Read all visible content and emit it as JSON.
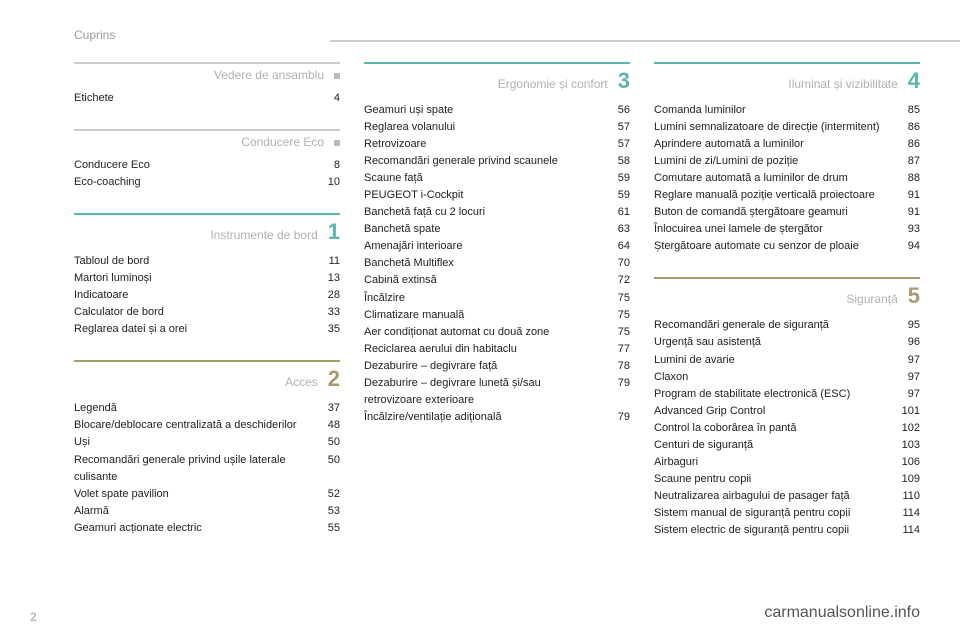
{
  "header": {
    "title": "Cuprins"
  },
  "page_number": "2",
  "watermark": "carmanualsonline.info",
  "colors": {
    "muted": "#b0b0b0",
    "teal": "#5bb5b0",
    "olive": "#a89a6b"
  },
  "columns": [
    {
      "sections": [
        {
          "title": "Vedere de ansamblu",
          "title_color": "#b0b0b0",
          "rule_color": "#cccccc",
          "marker": {
            "type": "dot"
          },
          "entries": [
            {
              "label": "Etichete",
              "page": "4"
            }
          ]
        },
        {
          "title": "Conducere Eco",
          "title_color": "#b0b0b0",
          "rule_color": "#cccccc",
          "marker": {
            "type": "dot"
          },
          "entries": [
            {
              "label": "Conducere Eco",
              "page": "8"
            },
            {
              "label": "Eco-coaching",
              "page": "10"
            }
          ]
        },
        {
          "title": "Instrumente de bord",
          "title_color": "#b0b0b0",
          "rule_color": "#5bb5b0",
          "marker": {
            "type": "number",
            "value": "1",
            "color": "#5bb5b0"
          },
          "entries": [
            {
              "label": "Tabloul de bord",
              "page": "11"
            },
            {
              "label": "Martori luminoși",
              "page": "13"
            },
            {
              "label": "Indicatoare",
              "page": "28"
            },
            {
              "label": "Calculator de bord",
              "page": "33"
            },
            {
              "label": "Reglarea datei și a orei",
              "page": "35"
            }
          ]
        },
        {
          "title": "Acces",
          "title_color": "#b0b0b0",
          "rule_color": "#a89a6b",
          "marker": {
            "type": "number",
            "value": "2",
            "color": "#a89a6b"
          },
          "entries": [
            {
              "label": "Legendă",
              "page": "37"
            },
            {
              "label": "Blocare/deblocare centralizată a deschiderilor",
              "page": "48"
            },
            {
              "label": "Uși",
              "page": "50"
            },
            {
              "label": "Recomandări generale privind ușile laterale culisante",
              "page": "50"
            },
            {
              "label": "Volet spate pavilion",
              "page": "52"
            },
            {
              "label": "Alarmă",
              "page": "53"
            },
            {
              "label": "Geamuri acționate electric",
              "page": "55"
            }
          ]
        }
      ]
    },
    {
      "sections": [
        {
          "title": "Ergonomie și confort",
          "title_color": "#b0b0b0",
          "rule_color": "#5bb5b0",
          "marker": {
            "type": "number",
            "value": "3",
            "color": "#5bb5b0"
          },
          "entries": [
            {
              "label": "Geamuri uși spate",
              "page": "56"
            },
            {
              "label": "Reglarea volanului",
              "page": "57"
            },
            {
              "label": "Retrovizoare",
              "page": "57"
            },
            {
              "label": "Recomandări generale privind scaunele",
              "page": "58"
            },
            {
              "label": "Scaune față",
              "page": "59"
            },
            {
              "label": "PEUGEOT i-Cockpit",
              "page": "59"
            },
            {
              "label": "Banchetă față cu 2 locuri",
              "page": "61"
            },
            {
              "label": "Banchetă spate",
              "page": "63"
            },
            {
              "label": "Amenajări interioare",
              "page": "64"
            },
            {
              "label": "Banchetă Multiflex",
              "page": "70"
            },
            {
              "label": "Cabină extinsă",
              "page": "72"
            },
            {
              "label": "Încălzire",
              "page": "75"
            },
            {
              "label": "Climatizare manuală",
              "page": "75"
            },
            {
              "label": "Aer condiționat automat cu două zone",
              "page": "75"
            },
            {
              "label": "Reciclarea aerului din habitaclu",
              "page": "77"
            },
            {
              "label": "Dezaburire – degivrare față",
              "page": "78"
            },
            {
              "label": "Dezaburire – degivrare lunetă și/sau retrovizoare exterioare",
              "page": "79"
            },
            {
              "label": "Încălzire/ventilație adițională",
              "page": "79"
            }
          ]
        }
      ]
    },
    {
      "sections": [
        {
          "title": "Iluminat și vizibilitate",
          "title_color": "#b0b0b0",
          "rule_color": "#5bb5b0",
          "marker": {
            "type": "number",
            "value": "4",
            "color": "#5bb5b0"
          },
          "entries": [
            {
              "label": "Comanda luminilor",
              "page": "85"
            },
            {
              "label": "Lumini semnalizatoare de direcție (intermitent)",
              "page": "86"
            },
            {
              "label": "Aprindere automată a luminilor",
              "page": "86"
            },
            {
              "label": "Lumini de zi/Lumini de poziție",
              "page": "87"
            },
            {
              "label": "Comutare automată a luminilor de drum",
              "page": "88"
            },
            {
              "label": "Reglare manuală poziție verticală proiectoare",
              "page": "91"
            },
            {
              "label": "Buton de comandă ștergătoare geamuri",
              "page": "91"
            },
            {
              "label": "Înlocuirea unei lamele de ștergător",
              "page": "93"
            },
            {
              "label": "Ștergătoare automate cu senzor de ploaie",
              "page": "94"
            }
          ]
        },
        {
          "title": "Siguranță",
          "title_color": "#b0b0b0",
          "rule_color": "#a89a6b",
          "marker": {
            "type": "number",
            "value": "5",
            "color": "#a89a6b"
          },
          "entries": [
            {
              "label": "Recomandări generale de siguranță",
              "page": "95"
            },
            {
              "label": "Urgență sau asistență",
              "page": "96"
            },
            {
              "label": "Lumini de avarie",
              "page": "97"
            },
            {
              "label": "Claxon",
              "page": "97"
            },
            {
              "label": "Program de stabilitate electronică (ESC)",
              "page": "97"
            },
            {
              "label": "Advanced Grip Control",
              "page": "101"
            },
            {
              "label": "Control la coborârea în pantă",
              "page": "102"
            },
            {
              "label": "Centuri de siguranță",
              "page": "103"
            },
            {
              "label": "Airbaguri",
              "page": "106"
            },
            {
              "label": "Scaune pentru copii",
              "page": "109"
            },
            {
              "label": "Neutralizarea airbagului de pasager față",
              "page": "110"
            },
            {
              "label": "Sistem manual de siguranță pentru copii",
              "page": "114"
            },
            {
              "label": "Sistem electric de siguranță pentru copii",
              "page": "114"
            }
          ]
        }
      ]
    }
  ]
}
